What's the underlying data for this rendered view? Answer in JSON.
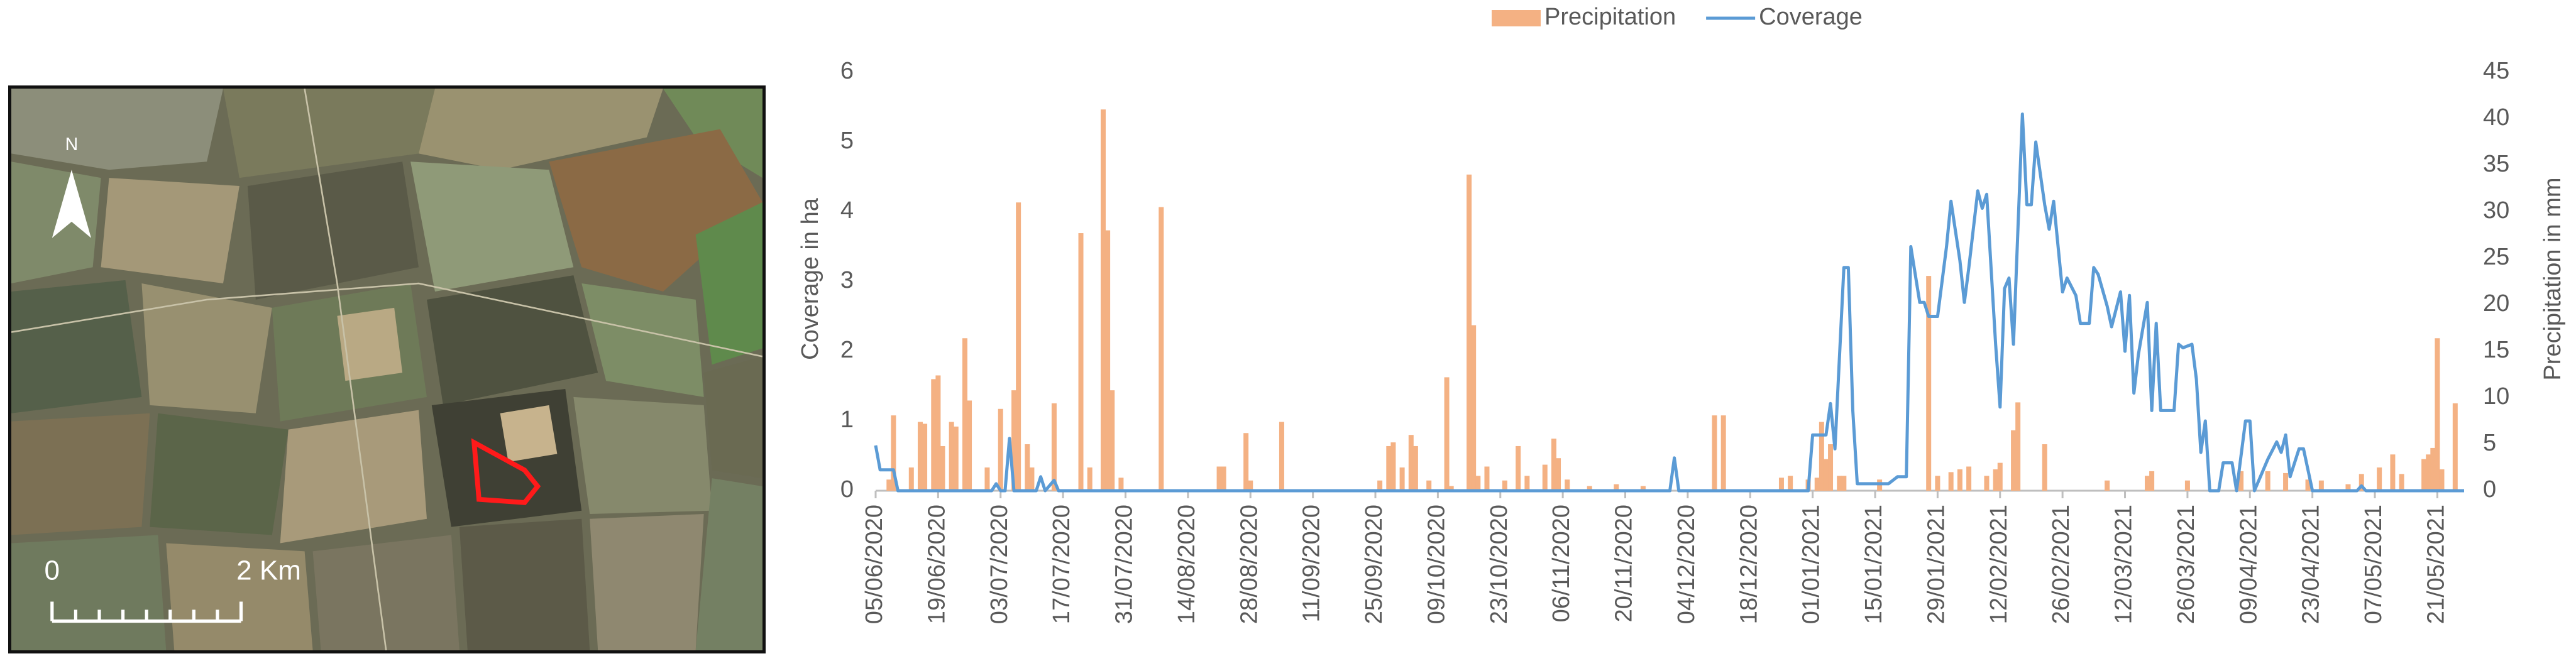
{
  "map": {
    "north": "N",
    "scale_start": "0",
    "scale_end": "2 Km"
  },
  "chart_data": {
    "type": "combo",
    "ylabel": "Coverage in ha",
    "y2label": "Precipitation in mm",
    "xlim": [
      "05/06/2020",
      "27/05/2021"
    ],
    "xticks": [
      "05/06/2020",
      "19/06/2020",
      "03/07/2020",
      "17/07/2020",
      "31/07/2020",
      "14/08/2020",
      "28/08/2020",
      "11/09/2020",
      "25/09/2020",
      "09/10/2020",
      "23/10/2020",
      "06/11/2020",
      "20/11/2020",
      "04/12/2020",
      "18/12/2020",
      "01/01/2021",
      "15/01/2021",
      "29/01/2021",
      "12/02/2021",
      "26/02/2021",
      "12/03/2021",
      "26/03/2021",
      "09/04/2021",
      "23/04/2021",
      "07/05/2021",
      "21/05/2021"
    ],
    "ylim": [
      0,
      6
    ],
    "yticks": [
      0,
      1,
      2,
      3,
      4,
      5,
      6
    ],
    "y2lim": [
      0,
      45
    ],
    "y2ticks": [
      0,
      5,
      10,
      15,
      20,
      25,
      30,
      35,
      40,
      45
    ],
    "grid": false,
    "legend": "top",
    "series": [
      {
        "name": "Precipitation",
        "type": "bar",
        "axis": "y2",
        "color": "#f4b183",
        "x": [
          "08/06/2020",
          "09/06/2020",
          "13/06/2020",
          "15/06/2020",
          "16/06/2020",
          "18/06/2020",
          "19/06/2020",
          "20/06/2020",
          "22/06/2020",
          "23/06/2020",
          "25/06/2020",
          "26/06/2020",
          "30/06/2020",
          "03/07/2020",
          "06/07/2020",
          "07/07/2020",
          "09/07/2020",
          "10/07/2020",
          "15/07/2020",
          "21/07/2020",
          "23/07/2020",
          "26/07/2020",
          "27/07/2020",
          "28/07/2020",
          "30/07/2020",
          "08/08/2020",
          "21/08/2020",
          "22/08/2020",
          "27/08/2020",
          "28/08/2020",
          "04/09/2020",
          "26/09/2020",
          "28/09/2020",
          "29/09/2020",
          "01/10/2020",
          "03/10/2020",
          "04/10/2020",
          "07/10/2020",
          "11/10/2020",
          "12/10/2020",
          "16/10/2020",
          "17/10/2020",
          "18/10/2020",
          "20/10/2020",
          "24/10/2020",
          "27/10/2020",
          "29/10/2020",
          "02/11/2020",
          "04/11/2020",
          "05/11/2020",
          "07/11/2020",
          "12/11/2020",
          "18/11/2020",
          "24/11/2020",
          "10/12/2020",
          "12/12/2020",
          "25/12/2020",
          "27/12/2020",
          "31/12/2020",
          "02/01/2021",
          "03/01/2021",
          "04/01/2021",
          "05/01/2021",
          "07/01/2021",
          "08/01/2021",
          "16/01/2021",
          "27/01/2021",
          "29/01/2021",
          "01/02/2021",
          "03/02/2021",
          "05/02/2021",
          "09/02/2021",
          "11/02/2021",
          "12/02/2021",
          "15/02/2021",
          "16/02/2021",
          "22/02/2021",
          "08/03/2021",
          "17/03/2021",
          "18/03/2021",
          "26/03/2021",
          "07/04/2021",
          "13/04/2021",
          "17/04/2021",
          "22/04/2021",
          "25/04/2021",
          "01/05/2021",
          "04/05/2021",
          "08/05/2021",
          "11/05/2021",
          "13/05/2021",
          "18/05/2021",
          "19/05/2021",
          "20/05/2021",
          "21/05/2021",
          "22/05/2021",
          "25/05/2021"
        ],
        "values": [
          1.2,
          8.1,
          2.5,
          7.4,
          7.2,
          12,
          12.4,
          4.8,
          7.4,
          6.9,
          16.4,
          9.7,
          2.5,
          8.8,
          10.8,
          31,
          5,
          2.5,
          9.4,
          27.7,
          2.5,
          41,
          28,
          10.8,
          1.4,
          30.5,
          2.6,
          2.6,
          6.2,
          1.1,
          7.4,
          1.1,
          4.8,
          5.2,
          2.5,
          6,
          4.8,
          1.1,
          12.2,
          0.5,
          34,
          17.8,
          1.6,
          2.6,
          1.1,
          4.8,
          1.6,
          2.8,
          5.6,
          3.5,
          1.2,
          0.5,
          0.7,
          0.5,
          8.1,
          8.1,
          1.4,
          1.6,
          1.2,
          1.4,
          7.4,
          3.4,
          5,
          1.6,
          1.6,
          1.2,
          23.1,
          1.6,
          2,
          2.3,
          2.6,
          1.6,
          2.3,
          3,
          6.5,
          9.5,
          5,
          1.1,
          1.6,
          2.1,
          1.1,
          2.1,
          2.1,
          1.9,
          1.2,
          1.1,
          0.7,
          1.8,
          2.5,
          3.9,
          1.8,
          3.4,
          3.9,
          4.6,
          16.4,
          2.3,
          9.4
        ]
      },
      {
        "name": "Coverage",
        "type": "line",
        "axis": "y",
        "color": "#5b9bd5",
        "x": [
          "05/06/2020",
          "06/06/2020",
          "09/06/2020",
          "10/06/2020",
          "01/07/2020",
          "02/07/2020",
          "03/07/2020",
          "04/07/2020",
          "05/07/2020",
          "06/07/2020",
          "11/07/2020",
          "12/07/2020",
          "13/07/2020",
          "15/07/2020",
          "16/07/2020",
          "30/11/2020",
          "01/12/2020",
          "02/12/2020",
          "31/12/2020",
          "01/01/2021",
          "04/01/2021",
          "05/01/2021",
          "06/01/2021",
          "08/01/2021",
          "09/01/2021",
          "10/01/2021",
          "11/01/2021",
          "18/01/2021",
          "20/01/2021",
          "22/01/2021",
          "23/01/2021",
          "25/01/2021",
          "26/01/2021",
          "27/01/2021",
          "29/01/2021",
          "31/01/2021",
          "01/02/2021",
          "03/02/2021",
          "04/02/2021",
          "05/02/2021",
          "07/02/2021",
          "08/02/2021",
          "09/02/2021",
          "11/02/2021",
          "12/02/2021",
          "13/02/2021",
          "14/02/2021",
          "15/02/2021",
          "17/02/2021",
          "18/02/2021",
          "19/02/2021",
          "20/02/2021",
          "22/02/2021",
          "23/02/2021",
          "24/02/2021",
          "26/02/2021",
          "27/02/2021",
          "01/03/2021",
          "02/03/2021",
          "04/03/2021",
          "05/03/2021",
          "06/03/2021",
          "08/03/2021",
          "09/03/2021",
          "11/03/2021",
          "12/03/2021",
          "13/03/2021",
          "14/03/2021",
          "15/03/2021",
          "17/03/2021",
          "18/03/2021",
          "19/03/2021",
          "20/03/2021",
          "23/03/2021",
          "24/03/2021",
          "25/03/2021",
          "27/03/2021",
          "28/03/2021",
          "29/03/2021",
          "30/03/2021",
          "31/03/2021",
          "02/04/2021",
          "03/04/2021",
          "05/04/2021",
          "06/04/2021",
          "08/04/2021",
          "09/04/2021",
          "10/04/2021",
          "11/04/2021",
          "13/04/2021",
          "15/04/2021",
          "16/04/2021",
          "17/04/2021",
          "18/04/2021",
          "20/04/2021",
          "21/04/2021",
          "23/04/2021",
          "03/05/2021",
          "04/05/2021",
          "05/05/2021",
          "27/05/2021"
        ],
        "values": [
          0.65,
          0.3,
          0.3,
          0,
          0,
          0.1,
          0,
          0,
          0.75,
          0,
          0,
          0.2,
          0,
          0.15,
          0,
          0,
          0.47,
          0,
          0,
          0.8,
          0.8,
          1.25,
          0.6,
          3.2,
          3.2,
          1.15,
          0.1,
          0.1,
          0.2,
          0.2,
          3.5,
          2.7,
          2.7,
          2.5,
          2.5,
          3.5,
          4.15,
          3.3,
          2.7,
          3.2,
          4.3,
          4.05,
          4.25,
          2.1,
          1.2,
          2.9,
          3.05,
          2.1,
          5.4,
          4.1,
          4.1,
          5,
          4.1,
          3.75,
          4.15,
          2.85,
          3.05,
          2.8,
          2.4,
          2.4,
          3.2,
          3.1,
          2.65,
          2.35,
          2.85,
          2,
          2.8,
          1.4,
          1.95,
          2.7,
          1.15,
          2.4,
          1.15,
          1.15,
          2.1,
          2.05,
          2.1,
          1.6,
          0.55,
          1,
          0,
          0,
          0.4,
          0.4,
          0,
          1,
          1,
          0,
          0.15,
          0.45,
          0.7,
          0.55,
          0.8,
          0.2,
          0.6,
          0.6,
          0,
          0,
          0.07,
          0,
          0
        ]
      }
    ]
  }
}
